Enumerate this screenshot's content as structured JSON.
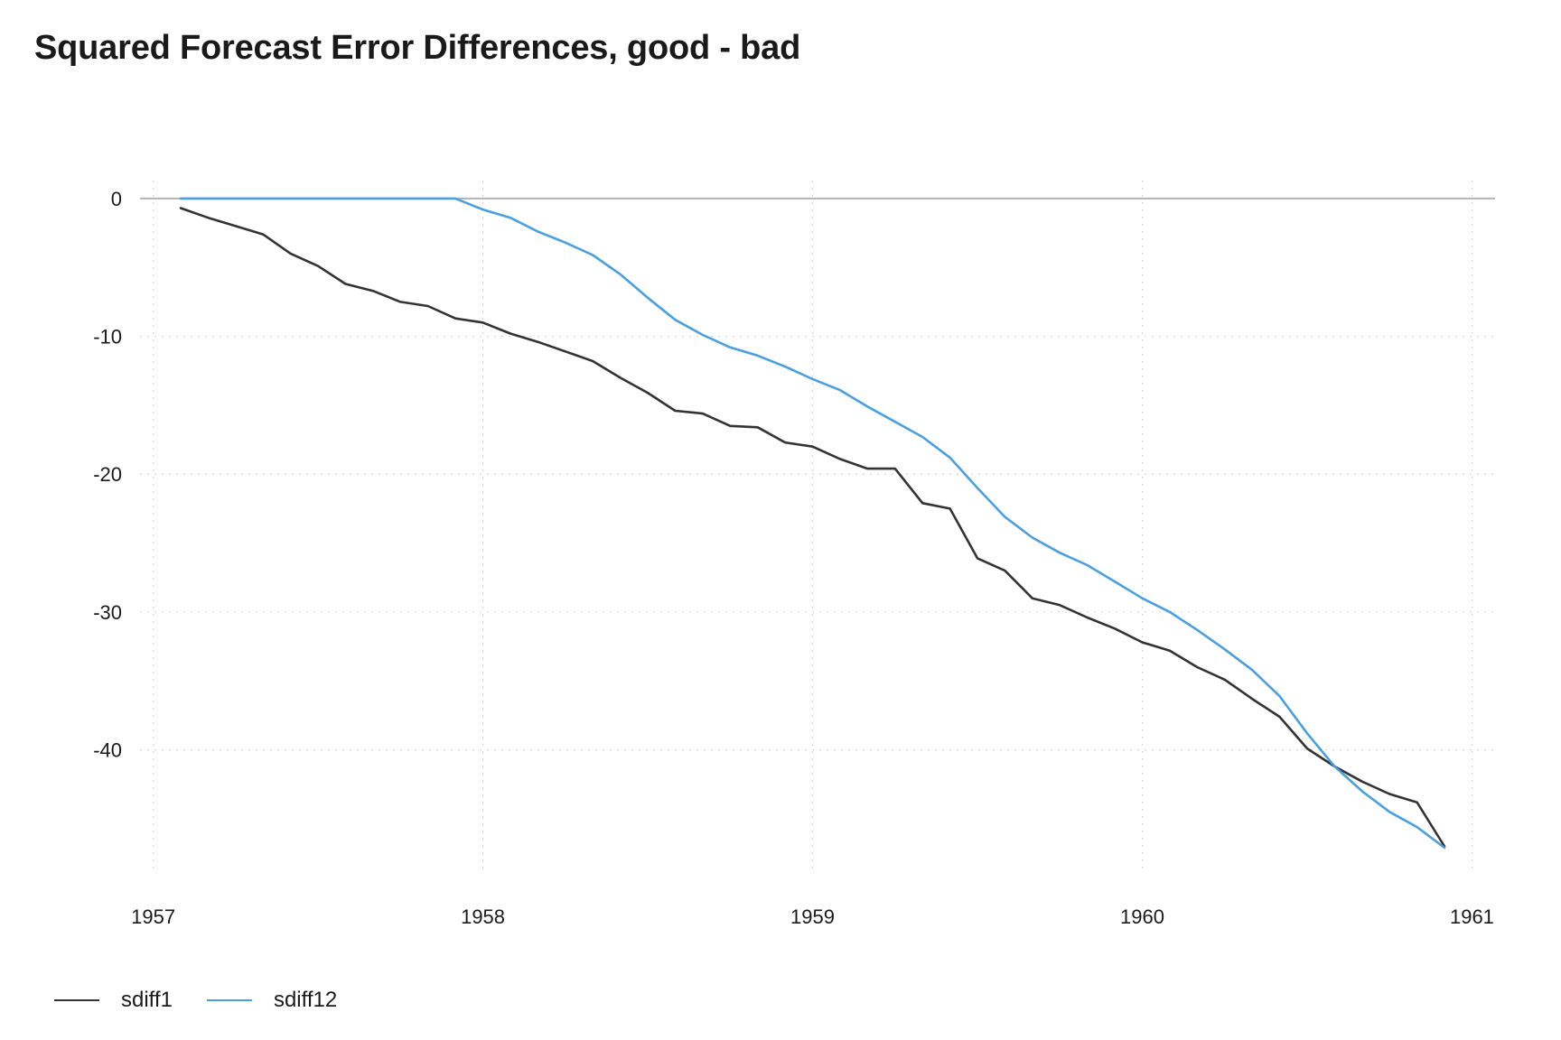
{
  "chart_data": {
    "type": "line",
    "title": "Squared Forecast Error Differences, good - bad",
    "xlabel": "",
    "ylabel": "",
    "xlim": [
      1956.96,
      1961.07
    ],
    "ylim": [
      -48.8,
      1.3
    ],
    "x_ticks": [
      1957,
      1958,
      1959,
      1960,
      1961
    ],
    "y_ticks": [
      0,
      -10,
      -20,
      -30,
      -40
    ],
    "grid": true,
    "zero_line": true,
    "legend": "bottom-left",
    "series": [
      {
        "name": "sdiff1",
        "color": "#333333",
        "x_start": 1957.0833,
        "x_step": 0.0833333,
        "values": [
          -0.7,
          -1.4,
          -2.0,
          -2.6,
          -4.0,
          -4.9,
          -6.2,
          -6.7,
          -7.5,
          -7.8,
          -8.7,
          -9.0,
          -9.8,
          -10.4,
          -11.1,
          -11.8,
          -13.0,
          -14.1,
          -15.4,
          -15.6,
          -16.5,
          -16.6,
          -17.7,
          -18.0,
          -18.9,
          -19.6,
          -19.6,
          -22.1,
          -22.5,
          -26.1,
          -27.0,
          -29.0,
          -29.5,
          -30.4,
          -31.2,
          -32.2,
          -32.8,
          -34.0,
          -34.9,
          -36.3,
          -37.6,
          -39.9,
          -41.2,
          -42.3,
          -43.2,
          -43.8,
          -47.0
        ]
      },
      {
        "name": "sdiff12",
        "color": "#4a9fe0",
        "x_start": 1957.0833,
        "x_step": 0.0833333,
        "values": [
          0,
          0,
          0,
          0,
          0,
          0,
          0,
          0,
          0,
          0,
          0,
          -0.8,
          -1.4,
          -2.4,
          -3.2,
          -4.1,
          -5.5,
          -7.2,
          -8.8,
          -9.9,
          -10.8,
          -11.4,
          -12.2,
          -13.1,
          -13.9,
          -15.1,
          -16.2,
          -17.3,
          -18.8,
          -21.0,
          -23.1,
          -24.6,
          -25.7,
          -26.6,
          -27.8,
          -29.0,
          -30.0,
          -31.3,
          -32.7,
          -34.2,
          -36.1,
          -38.8,
          -41.2,
          -43.0,
          -44.5,
          -45.6,
          -47.1
        ]
      }
    ]
  }
}
